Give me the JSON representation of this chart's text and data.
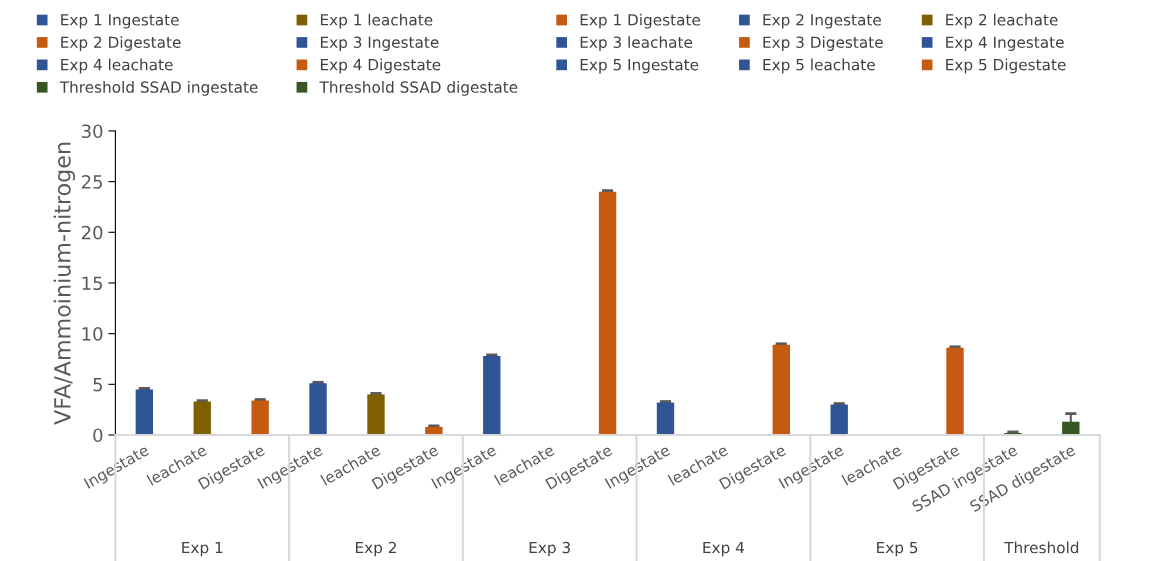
{
  "chart_data": {
    "type": "bar",
    "ylabel": "VFA/Ammoinium-nitrogen",
    "categories": [
      "Ingestate",
      "leachate",
      "Digestate",
      "Ingestate",
      "leachate",
      "Digestate",
      "Ingestate",
      "leachate",
      "Digestate",
      "Ingestate",
      "leachate",
      "Digestate",
      "Ingestate",
      "leachate",
      "Digestate",
      "SSAD ingestate",
      "SSAD digestate"
    ],
    "annotations": [
      "Exp 1",
      "Exp 2",
      "Exp 3",
      "Exp 4",
      "Exp 5",
      "Threshold"
    ],
    "ylim": [
      0,
      30
    ],
    "yticks": [
      0,
      5,
      10,
      15,
      20,
      25,
      30
    ],
    "grid": false,
    "legend": "top",
    "series": [
      {
        "name": "Exp 1 Ingestate",
        "color": "#2f5597",
        "values": [
          4.5,
          null,
          null,
          null,
          null,
          null,
          null,
          null,
          null,
          null,
          null,
          null,
          null,
          null,
          null,
          null,
          null
        ],
        "errors": [
          0.1,
          null,
          null,
          null,
          null,
          null,
          null,
          null,
          null,
          null,
          null,
          null,
          null,
          null,
          null,
          null,
          null
        ]
      },
      {
        "name": "Exp 1 leachate",
        "color": "#7f6000",
        "values": [
          null,
          3.3,
          null,
          null,
          null,
          null,
          null,
          null,
          null,
          null,
          null,
          null,
          null,
          null,
          null,
          null,
          null
        ],
        "errors": [
          null,
          0.1,
          null,
          null,
          null,
          null,
          null,
          null,
          null,
          null,
          null,
          null,
          null,
          null,
          null,
          null,
          null
        ]
      },
      {
        "name": "Exp 1 Digestate",
        "color": "#c55a11",
        "values": [
          null,
          null,
          3.4,
          null,
          null,
          null,
          null,
          null,
          null,
          null,
          null,
          null,
          null,
          null,
          null,
          null,
          null
        ],
        "errors": [
          null,
          null,
          0.1,
          null,
          null,
          null,
          null,
          null,
          null,
          null,
          null,
          null,
          null,
          null,
          null,
          null,
          null
        ]
      },
      {
        "name": "Exp 2 Ingestate",
        "color": "#2f5597",
        "values": [
          null,
          null,
          null,
          5.1,
          null,
          null,
          null,
          null,
          null,
          null,
          null,
          null,
          null,
          null,
          null,
          null,
          null
        ],
        "errors": [
          null,
          null,
          null,
          0.1,
          null,
          null,
          null,
          null,
          null,
          null,
          null,
          null,
          null,
          null,
          null,
          null,
          null
        ]
      },
      {
        "name": "Exp 2 leachate",
        "color": "#7f6000",
        "values": [
          null,
          null,
          null,
          null,
          4.0,
          null,
          null,
          null,
          null,
          null,
          null,
          null,
          null,
          null,
          null,
          null,
          null
        ],
        "errors": [
          null,
          null,
          null,
          null,
          0.1,
          null,
          null,
          null,
          null,
          null,
          null,
          null,
          null,
          null,
          null,
          null,
          null
        ]
      },
      {
        "name": "Exp 2 Digestate",
        "color": "#c55a11",
        "values": [
          null,
          null,
          null,
          null,
          null,
          0.8,
          null,
          null,
          null,
          null,
          null,
          null,
          null,
          null,
          null,
          null,
          null
        ],
        "errors": [
          null,
          null,
          null,
          null,
          null,
          0.1,
          null,
          null,
          null,
          null,
          null,
          null,
          null,
          null,
          null,
          null,
          null
        ]
      },
      {
        "name": "Exp 3 Ingestate",
        "color": "#2f5597",
        "values": [
          null,
          null,
          null,
          null,
          null,
          null,
          7.8,
          null,
          null,
          null,
          null,
          null,
          null,
          null,
          null,
          null,
          null
        ],
        "errors": [
          null,
          null,
          null,
          null,
          null,
          null,
          0.1,
          null,
          null,
          null,
          null,
          null,
          null,
          null,
          null,
          null,
          null
        ]
      },
      {
        "name": "Exp 3 leachate",
        "color": "#2f5597",
        "values": [
          null,
          null,
          null,
          null,
          null,
          null,
          null,
          null,
          null,
          null,
          null,
          null,
          null,
          null,
          null,
          null,
          null
        ]
      },
      {
        "name": "Exp 3 Digestate",
        "color": "#c55a11",
        "values": [
          null,
          null,
          null,
          null,
          null,
          null,
          null,
          null,
          24.0,
          null,
          null,
          null,
          null,
          null,
          null,
          null,
          null
        ],
        "errors": [
          null,
          null,
          null,
          null,
          null,
          null,
          null,
          null,
          0.1,
          null,
          null,
          null,
          null,
          null,
          null,
          null,
          null
        ]
      },
      {
        "name": "Exp 4 Ingestate",
        "color": "#2f5597",
        "values": [
          null,
          null,
          null,
          null,
          null,
          null,
          null,
          null,
          null,
          3.2,
          null,
          null,
          null,
          null,
          null,
          null,
          null
        ],
        "errors": [
          null,
          null,
          null,
          null,
          null,
          null,
          null,
          null,
          null,
          0.1,
          null,
          null,
          null,
          null,
          null,
          null,
          null
        ]
      },
      {
        "name": "Exp 4 leachate",
        "color": "#2f5597",
        "values": [
          null,
          null,
          null,
          null,
          null,
          null,
          null,
          null,
          null,
          null,
          null,
          null,
          null,
          null,
          null,
          null,
          null
        ]
      },
      {
        "name": "Exp 4 Digestate",
        "color": "#c55a11",
        "values": [
          null,
          null,
          null,
          null,
          null,
          null,
          null,
          null,
          null,
          null,
          null,
          8.9,
          null,
          null,
          null,
          null,
          null
        ],
        "errors": [
          null,
          null,
          null,
          null,
          null,
          null,
          null,
          null,
          null,
          null,
          null,
          0.1,
          null,
          null,
          null,
          null,
          null
        ]
      },
      {
        "name": "Exp 5 Ingestate",
        "color": "#2f5597",
        "values": [
          null,
          null,
          null,
          null,
          null,
          null,
          null,
          null,
          null,
          null,
          null,
          null,
          3.0,
          null,
          null,
          null,
          null
        ],
        "errors": [
          null,
          null,
          null,
          null,
          null,
          null,
          null,
          null,
          null,
          null,
          null,
          null,
          0.1,
          null,
          null,
          null,
          null
        ]
      },
      {
        "name": "Exp 5 leachate",
        "color": "#2f5597",
        "values": [
          null,
          null,
          null,
          null,
          null,
          null,
          null,
          null,
          null,
          null,
          null,
          null,
          null,
          null,
          null,
          null,
          null
        ]
      },
      {
        "name": "Exp 5 Digestate",
        "color": "#c55a11",
        "values": [
          null,
          null,
          null,
          null,
          null,
          null,
          null,
          null,
          null,
          null,
          null,
          null,
          null,
          null,
          8.6,
          null,
          null
        ],
        "errors": [
          null,
          null,
          null,
          null,
          null,
          null,
          null,
          null,
          null,
          null,
          null,
          null,
          null,
          null,
          0.1,
          null,
          null
        ]
      },
      {
        "name": "Threshold SSAD ingestate",
        "color": "#375623",
        "values": [
          null,
          null,
          null,
          null,
          null,
          null,
          null,
          null,
          null,
          null,
          null,
          null,
          null,
          null,
          null,
          0.2,
          null
        ],
        "errors": [
          null,
          null,
          null,
          null,
          null,
          null,
          null,
          null,
          null,
          null,
          null,
          null,
          null,
          null,
          null,
          0.1,
          null
        ]
      },
      {
        "name": "Threshold SSAD digestate",
        "color": "#375623",
        "values": [
          null,
          null,
          null,
          null,
          null,
          null,
          null,
          null,
          null,
          null,
          null,
          null,
          null,
          null,
          null,
          null,
          1.3
        ],
        "errors": [
          null,
          null,
          null,
          null,
          null,
          null,
          null,
          null,
          null,
          null,
          null,
          null,
          null,
          null,
          null,
          null,
          0.8
        ]
      }
    ]
  }
}
